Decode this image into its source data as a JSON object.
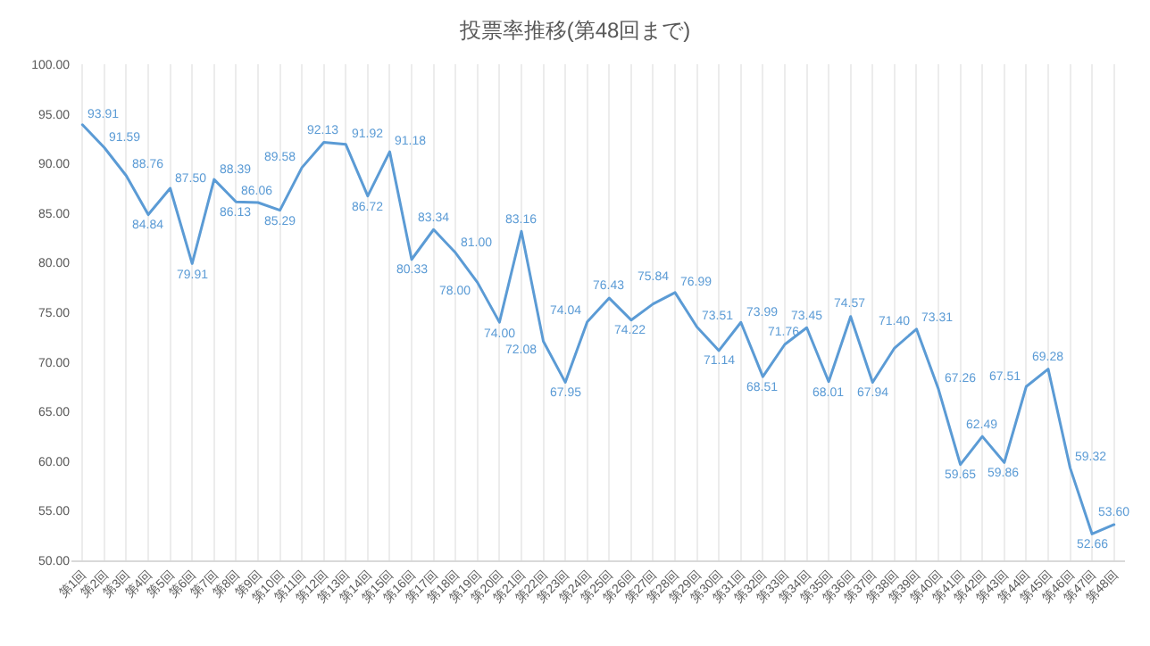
{
  "chart_data": {
    "type": "line",
    "title": "投票率推移(第48回まで)",
    "categories": [
      "第1回",
      "第2回",
      "第3回",
      "第4回",
      "第5回",
      "第6回",
      "第7回",
      "第8回",
      "第9回",
      "第10回",
      "第11回",
      "第12回",
      "第13回",
      "第14回",
      "第15回",
      "第16回",
      "第17回",
      "第18回",
      "第19回",
      "第20回",
      "第21回",
      "第22回",
      "第23回",
      "第24回",
      "第25回",
      "第26回",
      "第27回",
      "第28回",
      "第29回",
      "第30回",
      "第31回",
      "第32回",
      "第33回",
      "第34回",
      "第35回",
      "第36回",
      "第37回",
      "第38回",
      "第39回",
      "第40回",
      "第41回",
      "第42回",
      "第43回",
      "第44回",
      "第45回",
      "第46回",
      "第47回",
      "第48回"
    ],
    "values": [
      93.91,
      91.59,
      88.76,
      84.84,
      87.5,
      79.91,
      88.39,
      86.13,
      86.06,
      85.29,
      89.58,
      92.13,
      91.92,
      86.72,
      91.18,
      80.33,
      83.34,
      81,
      78,
      74,
      83.16,
      72.08,
      67.95,
      74.04,
      76.43,
      74.22,
      75.84,
      76.99,
      73.51,
      71.14,
      73.99,
      68.51,
      71.76,
      73.45,
      68.01,
      74.57,
      67.94,
      71.4,
      73.31,
      67.26,
      59.65,
      62.49,
      59.86,
      67.51,
      69.28,
      59.32,
      52.66,
      53.6
    ],
    "value_labels": [
      "93.91",
      "91.59",
      "88.76",
      "84.84",
      "87.50",
      "79.91",
      "88.39",
      "86.13",
      "86.06",
      "85.29",
      "89.58",
      "92.13",
      "91.92",
      "86.72",
      "91.18",
      "80.33",
      "83.34",
      "81.00",
      "78.00",
      "74.00",
      "83.16",
      "72.08",
      "67.95",
      "74.04",
      "76.43",
      "74.22",
      "75.84",
      "76.99",
      "73.51",
      "71.14",
      "73.99",
      "68.51",
      "71.76",
      "73.45",
      "68.01",
      "74.57",
      "67.94",
      "71.40",
      "73.31",
      "67.26",
      "59.65",
      "62.49",
      "59.86",
      "67.51",
      "69.28",
      "59.32",
      "52.66",
      "53.60"
    ],
    "color": "#5b9bd5",
    "ylim": [
      50,
      100
    ],
    "yticks": [
      {
        "value": 50,
        "label": "50.00"
      },
      {
        "value": 55,
        "label": "55.00"
      },
      {
        "value": 60,
        "label": "60.00"
      },
      {
        "value": 65,
        "label": "65.00"
      },
      {
        "value": 70,
        "label": "70.00"
      },
      {
        "value": 75,
        "label": "75.00"
      },
      {
        "value": 80,
        "label": "80.00"
      },
      {
        "value": 85,
        "label": "85.00"
      },
      {
        "value": 90,
        "label": "90.00"
      },
      {
        "value": 95,
        "label": "95.00"
      },
      {
        "value": 100,
        "label": "100.00"
      }
    ],
    "grid": "x",
    "marker": "none",
    "line_style": "solid"
  }
}
